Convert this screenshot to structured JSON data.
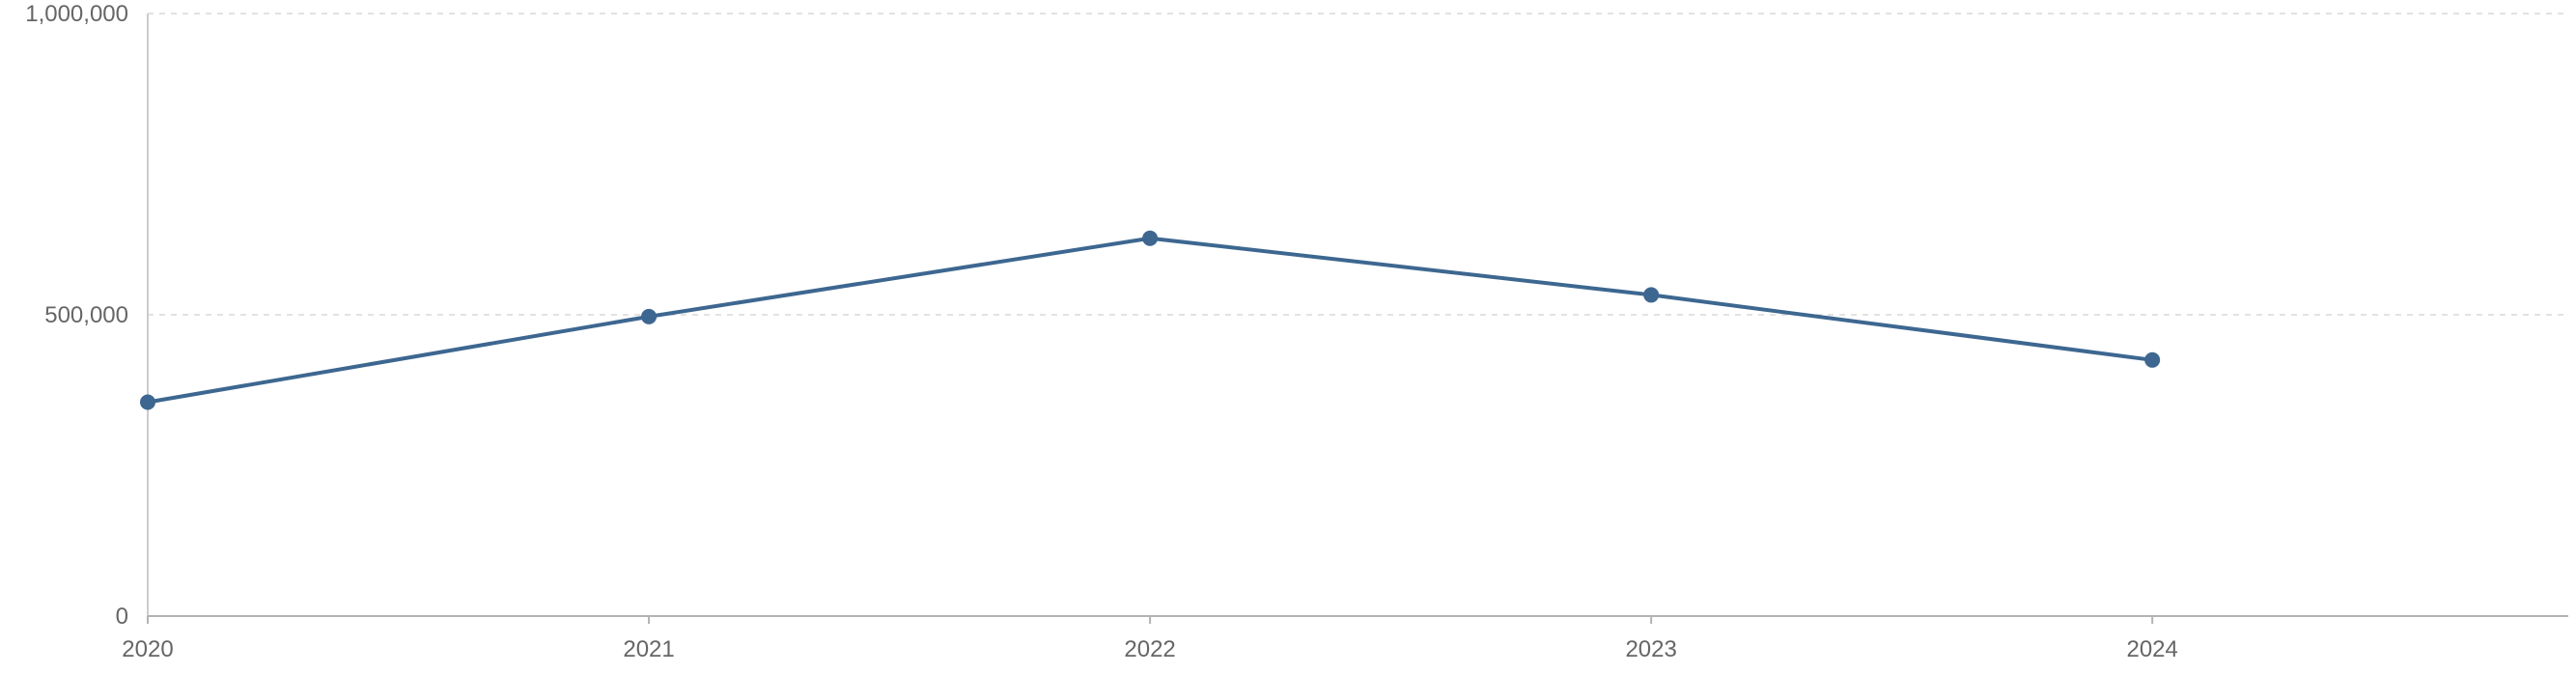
{
  "chart_data": {
    "type": "line",
    "title": "",
    "xlabel": "",
    "ylabel": "",
    "categories": [
      "2020",
      "2021",
      "2022",
      "2023",
      "2024"
    ],
    "x": [
      2020,
      2021,
      2022,
      2023,
      2024
    ],
    "xlim": [
      2020,
      2024.83
    ],
    "ylim": [
      0,
      1000000
    ],
    "y_ticks": [
      0,
      500000,
      1000000
    ],
    "y_tick_labels": [
      "0",
      "500,000",
      "1,000,000"
    ],
    "grid": "horizontal dashed",
    "legend": "none",
    "series": [
      {
        "values": [
          355000,
          497000,
          627000,
          533000,
          425000
        ],
        "color": "#3d6790"
      }
    ]
  }
}
